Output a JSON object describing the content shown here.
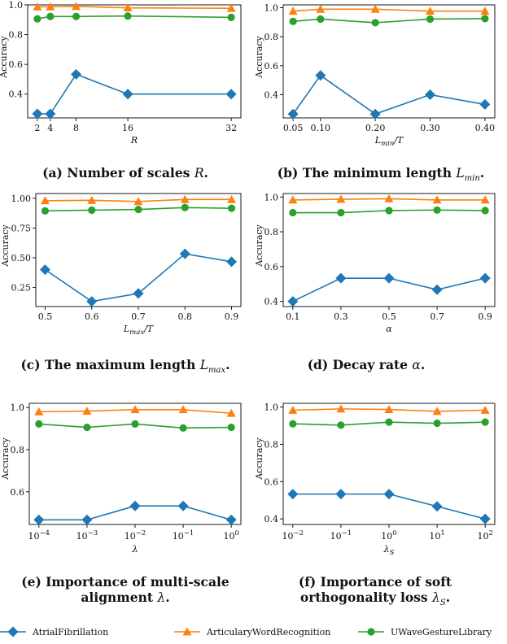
{
  "series_meta": [
    {
      "name": "AtrialFibrillation",
      "color": "#1f77b4",
      "marker": "diamond"
    },
    {
      "name": "ArticularyWordRecognition",
      "color": "#ff7f0e",
      "marker": "triangle"
    },
    {
      "name": "UWaveGestureLibrary",
      "color": "#2ca02c",
      "marker": "circle"
    }
  ],
  "captions": [
    {
      "label": "(a) Number of scales ",
      "math": "R",
      "tail": "."
    },
    {
      "label": "(b) The minimum length ",
      "math": "L",
      "sub": "min",
      "tail": "."
    },
    {
      "label": "(c) The maximum length ",
      "math": "L",
      "sub": "max",
      "tail": "."
    },
    {
      "label": "(d) Decay rate ",
      "math": "α",
      "tail": "."
    },
    {
      "label": "(e) Importance of multi-scale alignment ",
      "math": "λ",
      "tail": "."
    },
    {
      "label": "(f) Importance of soft orthogonality loss ",
      "math": "λ",
      "sub": "S",
      "tail": "."
    }
  ],
  "chart_data": [
    {
      "type": "line",
      "xlabel": "R",
      "ylabel": "Accuracy",
      "x": [
        2,
        4,
        8,
        16,
        32
      ],
      "xticks": [
        "2",
        "4",
        "8",
        "16",
        "32"
      ],
      "xlim": [
        0.5,
        33.5
      ],
      "ylim": [
        0.24,
        1.0
      ],
      "yticks": [
        0.4,
        0.6,
        0.8,
        1.0
      ],
      "ytick_labels": [
        "0.4",
        "0.6",
        "0.8",
        "1.0"
      ],
      "series": [
        {
          "name": "AtrialFibrillation",
          "values": [
            0.267,
            0.267,
            0.533,
            0.4,
            0.4
          ]
        },
        {
          "name": "ArticularyWordRecognition",
          "values": [
            0.987,
            0.987,
            0.99,
            0.98,
            0.977
          ]
        },
        {
          "name": "UWaveGestureLibrary",
          "values": [
            0.906,
            0.922,
            0.922,
            0.925,
            0.916
          ]
        }
      ]
    },
    {
      "type": "line",
      "xlabel": "Lmin/T",
      "ylabel": "Accuracy",
      "x": [
        0.05,
        0.1,
        0.2,
        0.3,
        0.4
      ],
      "xticks": [
        "0.05",
        "0.10",
        "0.20",
        "0.30",
        "0.40"
      ],
      "xlim": [
        0.032,
        0.418
      ],
      "ylim": [
        0.24,
        1.02
      ],
      "yticks": [
        0.4,
        0.6,
        0.8,
        1.0
      ],
      "ytick_labels": [
        "0.4",
        "0.6",
        "0.8",
        "1.0"
      ],
      "series": [
        {
          "name": "AtrialFibrillation",
          "values": [
            0.267,
            0.533,
            0.267,
            0.4,
            0.333
          ]
        },
        {
          "name": "ArticularyWordRecognition",
          "values": [
            0.977,
            0.99,
            0.99,
            0.977,
            0.977
          ]
        },
        {
          "name": "UWaveGestureLibrary",
          "values": [
            0.906,
            0.922,
            0.897,
            0.922,
            0.925
          ]
        }
      ]
    },
    {
      "type": "line",
      "xlabel": "Lmax/T",
      "ylabel": "Accuracy",
      "x": [
        0.5,
        0.6,
        0.7,
        0.8,
        0.9
      ],
      "xticks": [
        "0.5",
        "0.6",
        "0.7",
        "0.8",
        "0.9"
      ],
      "xlim": [
        0.48,
        0.92
      ],
      "ylim": [
        0.09,
        1.04
      ],
      "yticks": [
        0.25,
        0.5,
        0.75,
        1.0
      ],
      "ytick_labels": [
        "0.25",
        "0.50",
        "0.75",
        "1.00"
      ],
      "series": [
        {
          "name": "AtrialFibrillation",
          "values": [
            0.4,
            0.133,
            0.2,
            0.533,
            0.467
          ]
        },
        {
          "name": "ArticularyWordRecognition",
          "values": [
            0.98,
            0.983,
            0.973,
            0.99,
            0.99
          ]
        },
        {
          "name": "UWaveGestureLibrary",
          "values": [
            0.894,
            0.9,
            0.906,
            0.922,
            0.916
          ]
        }
      ]
    },
    {
      "type": "line",
      "xlabel": "α",
      "ylabel": "Accuracy",
      "x": [
        0.1,
        0.3,
        0.5,
        0.7,
        0.9
      ],
      "xticks": [
        "0.1",
        "0.3",
        "0.5",
        "0.7",
        "0.9"
      ],
      "xlim": [
        0.06,
        0.94
      ],
      "ylim": [
        0.37,
        1.02
      ],
      "yticks": [
        0.4,
        0.6,
        0.8,
        1.0
      ],
      "ytick_labels": [
        "0.4",
        "0.6",
        "0.8",
        "1.0"
      ],
      "series": [
        {
          "name": "AtrialFibrillation",
          "values": [
            0.4,
            0.533,
            0.533,
            0.467,
            0.533
          ]
        },
        {
          "name": "ArticularyWordRecognition",
          "values": [
            0.983,
            0.987,
            0.99,
            0.983,
            0.983
          ]
        },
        {
          "name": "UWaveGestureLibrary",
          "values": [
            0.91,
            0.91,
            0.922,
            0.925,
            0.922
          ]
        }
      ]
    },
    {
      "type": "line",
      "xlabel": "λ",
      "ylabel": "Accuracy",
      "x": [
        -4,
        -3,
        -2,
        -1,
        0
      ],
      "xscale": "log",
      "xticks": [
        "10^-4",
        "10^-3",
        "10^-2",
        "10^-1",
        "10^0"
      ],
      "xlim": [
        -4.2,
        0.2
      ],
      "ylim": [
        0.445,
        1.02
      ],
      "yticks": [
        0.6,
        0.8,
        1.0
      ],
      "ytick_labels": [
        "0.6",
        "0.8",
        "1.0"
      ],
      "series": [
        {
          "name": "AtrialFibrillation",
          "values": [
            0.467,
            0.467,
            0.533,
            0.533,
            0.467
          ]
        },
        {
          "name": "ArticularyWordRecognition",
          "values": [
            0.98,
            0.983,
            0.99,
            0.99,
            0.973
          ]
        },
        {
          "name": "UWaveGestureLibrary",
          "values": [
            0.922,
            0.906,
            0.922,
            0.903,
            0.906
          ]
        }
      ]
    },
    {
      "type": "line",
      "xlabel": "λS",
      "ylabel": "Accuracy",
      "x": [
        -2,
        -1,
        0,
        1,
        2
      ],
      "xscale": "log",
      "xticks": [
        "10^-2",
        "10^-1",
        "10^0",
        "10^1",
        "10^2"
      ],
      "xlim": [
        -2.2,
        2.2
      ],
      "ylim": [
        0.37,
        1.02
      ],
      "yticks": [
        0.4,
        0.6,
        0.8,
        1.0
      ],
      "ytick_labels": [
        "0.4",
        "0.6",
        "0.8",
        "1.0"
      ],
      "series": [
        {
          "name": "AtrialFibrillation",
          "values": [
            0.533,
            0.533,
            0.533,
            0.467,
            0.4
          ]
        },
        {
          "name": "ArticularyWordRecognition",
          "values": [
            0.983,
            0.99,
            0.987,
            0.977,
            0.983
          ]
        },
        {
          "name": "UWaveGestureLibrary",
          "values": [
            0.91,
            0.903,
            0.919,
            0.913,
            0.919
          ]
        }
      ]
    }
  ]
}
